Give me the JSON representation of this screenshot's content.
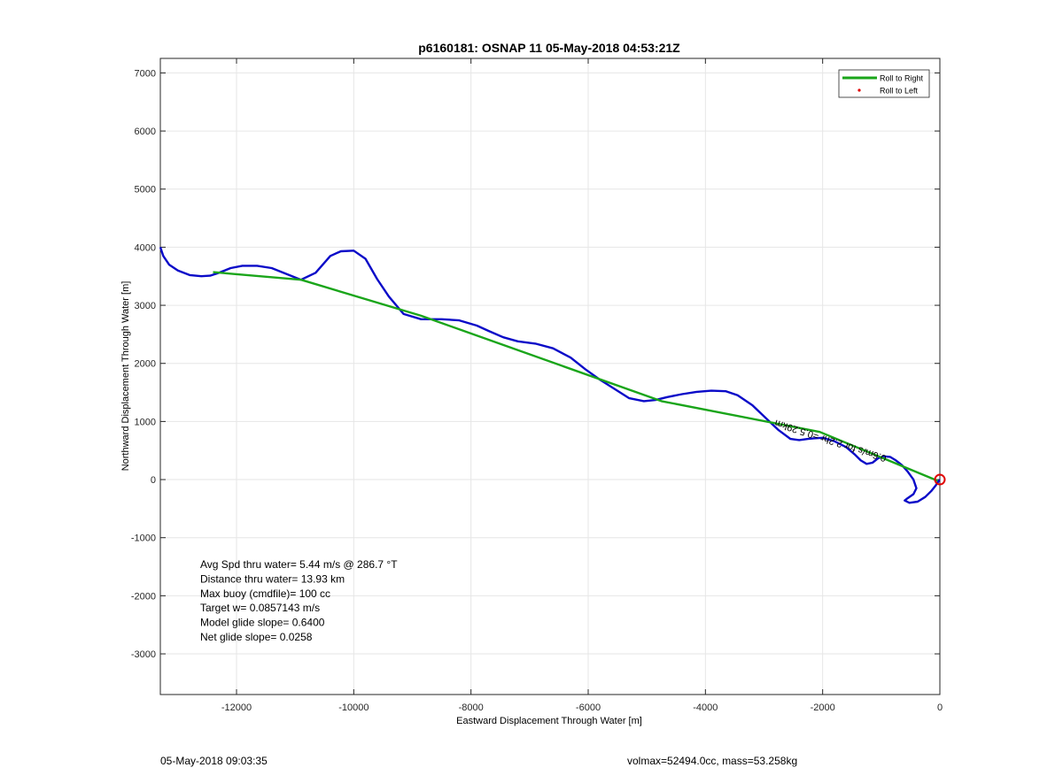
{
  "chart_data": {
    "type": "line",
    "title": "p6160181: OSNAP 11 05-May-2018 04:53:21Z",
    "xlabel": "Eastward Displacement Through Water [m]",
    "ylabel": "Northward Displacement Through Water [m]",
    "xlim": [
      -13300,
      0
    ],
    "ylim": [
      -3700,
      7250
    ],
    "xticks": [
      -12000,
      -10000,
      -8000,
      -6000,
      -4000,
      -2000,
      0
    ],
    "yticks": [
      -3000,
      -2000,
      -1000,
      0,
      1000,
      2000,
      3000,
      4000,
      5000,
      6000,
      7000
    ],
    "grid": true,
    "legend_position": "top-right",
    "legend": [
      {
        "name": "Roll to Right",
        "color": "#1aa51a",
        "marker": "line"
      },
      {
        "name": "Roll to Left",
        "color": "#e00000",
        "marker": "dot"
      }
    ],
    "series": [
      {
        "name": "Roll to Right",
        "color": "#1aa51a",
        "x": [
          -12400,
          -10900,
          -8850,
          -4750,
          -2050,
          -40
        ],
        "y": [
          3570,
          3440,
          2820,
          1350,
          820,
          -20
        ]
      },
      {
        "color": "#0a0ac8",
        "x": [
          -13300,
          -13250,
          -13150,
          -13000,
          -12800,
          -12600,
          -12450,
          -12300,
          -12100,
          -11900,
          -11650,
          -11400,
          -11150,
          -10900,
          -10650,
          -10400,
          -10220,
          -10000,
          -9800,
          -9600,
          -9400,
          -9150,
          -8850,
          -8500,
          -8200,
          -7900,
          -7700,
          -7450,
          -7200,
          -6900,
          -6600,
          -6300,
          -6050,
          -5800,
          -5550,
          -5300,
          -5050,
          -4850,
          -4650,
          -4400,
          -4150,
          -3900,
          -3650,
          -3450,
          -3200,
          -2950,
          -2750,
          -2550,
          -2400,
          -2250,
          -2150,
          -2000,
          -1800,
          -1600,
          -1450,
          -1350,
          -1250,
          -1150,
          -1050,
          -950,
          -850,
          -750,
          -650,
          -550,
          -450,
          -400,
          -450,
          -550,
          -600,
          -520,
          -380,
          -250,
          -150,
          -70,
          -30,
          -5
        ],
        "y": [
          4000,
          3850,
          3700,
          3600,
          3520,
          3500,
          3510,
          3560,
          3640,
          3680,
          3680,
          3640,
          3540,
          3440,
          3560,
          3850,
          3930,
          3940,
          3800,
          3450,
          3150,
          2850,
          2760,
          2760,
          2740,
          2650,
          2560,
          2450,
          2380,
          2340,
          2260,
          2100,
          1900,
          1720,
          1560,
          1400,
          1350,
          1370,
          1420,
          1470,
          1510,
          1530,
          1520,
          1450,
          1280,
          1040,
          850,
          700,
          680,
          700,
          710,
          720,
          660,
          560,
          430,
          330,
          270,
          290,
          370,
          400,
          390,
          330,
          250,
          140,
          0,
          -150,
          -250,
          -320,
          -360,
          -400,
          -380,
          -300,
          -200,
          -100,
          -40,
          0
        ]
      }
    ],
    "annotations": [
      {
        "text": "Avg Spd thru water=  5.44 m/s @ 286.7 °T"
      },
      {
        "text": "Distance thru water= 13.93 km"
      },
      {
        "text": "Max buoy (cmdfile)= 100 cc"
      },
      {
        "text": "Target w= 0.0857143 m/s"
      },
      {
        "text": "Model glide slope= 0.6400"
      },
      {
        "text": "Net glide slope= 0.0258"
      }
    ],
    "rotated_label": "0.6m/s for 2.2hr =0.5.29km",
    "start_marker": {
      "x": 0,
      "y": 0,
      "color": "#e00000"
    }
  },
  "footer": {
    "timestamp": "05-May-2018 09:03:35",
    "vol_mass": "volmax=52494.0cc, mass=53.258kg"
  }
}
